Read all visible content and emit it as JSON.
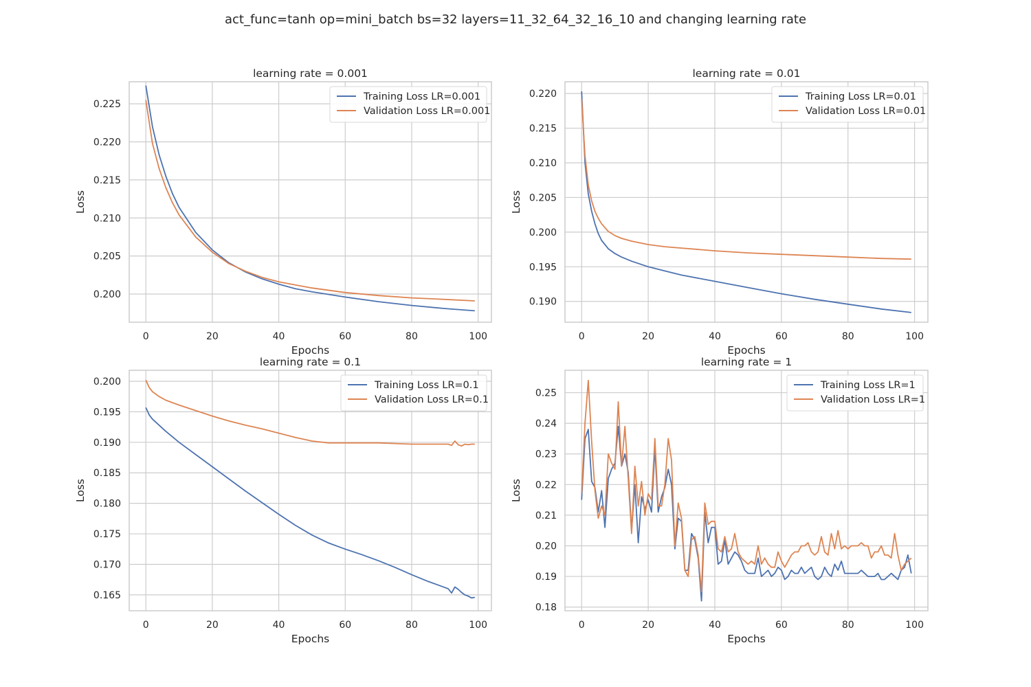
{
  "figure": {
    "suptitle": "act_func=tanh op=mini_batch bs=32 layers=11_32_64_32_16_10 and changing learning rate"
  },
  "colors": {
    "training": "#4c72b0",
    "validation": "#dd8452",
    "grid": "#cccccc",
    "spine": "#cccccc",
    "text": "#262626"
  },
  "chart_data": [
    {
      "type": "line",
      "title": "learning rate = 0.001",
      "xlabel": "Epochs",
      "ylabel": "Loss",
      "xlim": [
        -5,
        104
      ],
      "ylim": [
        0.1963,
        0.2279
      ],
      "xticks": [
        0,
        20,
        40,
        60,
        80,
        100
      ],
      "xtick_labels": [
        "0",
        "20",
        "40",
        "60",
        "80",
        "100"
      ],
      "yticks": [
        0.2,
        0.205,
        0.21,
        0.215,
        0.22,
        0.225
      ],
      "ytick_labels": [
        "0.200",
        "0.205",
        "0.210",
        "0.215",
        "0.220",
        "0.225"
      ],
      "grid": true,
      "legend": "top-right",
      "series": [
        {
          "name": "Training Loss LR=0.001",
          "color": "#4c72b0",
          "x": [
            0,
            2,
            4,
            6,
            8,
            10,
            15,
            20,
            25,
            30,
            35,
            40,
            45,
            50,
            60,
            70,
            80,
            90,
            99
          ],
          "y": [
            0.2274,
            0.222,
            0.2183,
            0.2155,
            0.2132,
            0.2114,
            0.2081,
            0.2058,
            0.2041,
            0.2029,
            0.202,
            0.2013,
            0.2007,
            0.2003,
            0.1996,
            0.199,
            0.1985,
            0.1981,
            0.1978
          ]
        },
        {
          "name": "Validation Loss LR=0.001",
          "color": "#dd8452",
          "x": [
            0,
            2,
            4,
            6,
            8,
            10,
            15,
            20,
            25,
            30,
            35,
            40,
            45,
            50,
            60,
            70,
            80,
            90,
            99
          ],
          "y": [
            0.2255,
            0.2198,
            0.2165,
            0.214,
            0.212,
            0.2104,
            0.2075,
            0.2055,
            0.204,
            0.203,
            0.2022,
            0.2016,
            0.2012,
            0.2008,
            0.2002,
            0.1998,
            0.1995,
            0.1993,
            0.1991
          ]
        }
      ]
    },
    {
      "type": "line",
      "title": "learning rate = 0.01",
      "xlabel": "Epochs",
      "ylabel": "Loss",
      "xlim": [
        -5,
        104
      ],
      "ylim": [
        0.187,
        0.2217
      ],
      "xticks": [
        0,
        20,
        40,
        60,
        80,
        100
      ],
      "xtick_labels": [
        "0",
        "20",
        "40",
        "60",
        "80",
        "100"
      ],
      "yticks": [
        0.19,
        0.195,
        0.2,
        0.205,
        0.21,
        0.215,
        0.22
      ],
      "ytick_labels": [
        "0.190",
        "0.195",
        "0.200",
        "0.205",
        "0.210",
        "0.215",
        "0.220"
      ],
      "grid": true,
      "legend": "top-right",
      "series": [
        {
          "name": "Training Loss LR=0.01",
          "color": "#4c72b0",
          "x": [
            0,
            1,
            2,
            3,
            4,
            5,
            6,
            8,
            10,
            12,
            15,
            20,
            25,
            30,
            40,
            50,
            60,
            70,
            80,
            90,
            99
          ],
          "y": [
            0.2203,
            0.21,
            0.2055,
            0.203,
            0.2012,
            0.1998,
            0.1988,
            0.1976,
            0.1969,
            0.1964,
            0.1958,
            0.195,
            0.1944,
            0.1938,
            0.1929,
            0.192,
            0.1911,
            0.1903,
            0.1896,
            0.1889,
            0.1884
          ]
        },
        {
          "name": "Validation Loss LR=0.01",
          "color": "#dd8452",
          "x": [
            0,
            1,
            2,
            3,
            4,
            5,
            6,
            8,
            10,
            12,
            15,
            20,
            25,
            30,
            40,
            50,
            60,
            70,
            80,
            90,
            99
          ],
          "y": [
            0.2192,
            0.211,
            0.2068,
            0.2045,
            0.203,
            0.202,
            0.2012,
            0.2001,
            0.1995,
            0.1991,
            0.1987,
            0.1982,
            0.1979,
            0.1977,
            0.1973,
            0.197,
            0.1968,
            0.1966,
            0.1964,
            0.1962,
            0.1961
          ]
        }
      ]
    },
    {
      "type": "line",
      "title": "learning rate = 0.1",
      "xlabel": "Epochs",
      "ylabel": "Loss",
      "xlim": [
        -5,
        104
      ],
      "ylim": [
        0.1624,
        0.2018
      ],
      "xticks": [
        0,
        20,
        40,
        60,
        80,
        100
      ],
      "xtick_labels": [
        "0",
        "20",
        "40",
        "60",
        "80",
        "100"
      ],
      "yticks": [
        0.165,
        0.17,
        0.175,
        0.18,
        0.185,
        0.19,
        0.195,
        0.2
      ],
      "ytick_labels": [
        "0.165",
        "0.170",
        "0.175",
        "0.180",
        "0.185",
        "0.190",
        "0.195",
        "0.200"
      ],
      "grid": true,
      "legend": "top-right",
      "series": [
        {
          "name": "Training Loss LR=0.1",
          "color": "#4c72b0",
          "x": [
            0,
            1,
            2,
            4,
            6,
            8,
            10,
            15,
            20,
            25,
            30,
            35,
            40,
            45,
            50,
            55,
            60,
            65,
            70,
            75,
            80,
            85,
            90,
            91,
            92,
            93,
            94,
            95,
            96,
            97,
            98,
            99
          ],
          "y": [
            0.1957,
            0.1945,
            0.1938,
            0.1928,
            0.1918,
            0.1909,
            0.19,
            0.188,
            0.186,
            0.184,
            0.182,
            0.1801,
            0.1782,
            0.1764,
            0.1748,
            0.1735,
            0.1725,
            0.1716,
            0.1706,
            0.1695,
            0.1683,
            0.1672,
            0.1662,
            0.166,
            0.1653,
            0.1663,
            0.1659,
            0.1654,
            0.165,
            0.1648,
            0.1645,
            0.1646
          ]
        },
        {
          "name": "Validation Loss LR=0.1",
          "color": "#dd8452",
          "x": [
            0,
            1,
            2,
            4,
            6,
            8,
            10,
            15,
            20,
            25,
            30,
            35,
            40,
            45,
            50,
            55,
            60,
            65,
            70,
            75,
            80,
            85,
            90,
            91,
            92,
            93,
            94,
            95,
            96,
            97,
            98,
            99
          ],
          "y": [
            0.2002,
            0.199,
            0.1983,
            0.1975,
            0.1969,
            0.1965,
            0.1961,
            0.1952,
            0.1943,
            0.1935,
            0.1928,
            0.1922,
            0.1915,
            0.1908,
            0.1902,
            0.1899,
            0.1899,
            0.1899,
            0.1899,
            0.1898,
            0.1897,
            0.1897,
            0.1897,
            0.1897,
            0.1895,
            0.1902,
            0.1896,
            0.1894,
            0.1897,
            0.1896,
            0.1897,
            0.1897
          ]
        }
      ]
    },
    {
      "type": "line",
      "title": "learning rate = 1",
      "xlabel": "Epochs",
      "ylabel": "Loss",
      "xlim": [
        -5,
        104
      ],
      "ylim": [
        0.1788,
        0.2573
      ],
      "xticks": [
        0,
        20,
        40,
        60,
        80,
        100
      ],
      "xtick_labels": [
        "0",
        "20",
        "40",
        "60",
        "80",
        "100"
      ],
      "yticks": [
        0.18,
        0.19,
        0.2,
        0.21,
        0.22,
        0.23,
        0.24,
        0.25
      ],
      "ytick_labels": [
        "0.18",
        "0.19",
        "0.20",
        "0.21",
        "0.22",
        "0.23",
        "0.24",
        "0.25"
      ],
      "grid": true,
      "legend": "top-right",
      "series": [
        {
          "name": "Training Loss LR=1",
          "color": "#4c72b0",
          "x": [
            0,
            1,
            2,
            3,
            4,
            5,
            6,
            7,
            8,
            9,
            10,
            11,
            12,
            13,
            14,
            15,
            16,
            17,
            18,
            19,
            20,
            21,
            22,
            23,
            24,
            25,
            26,
            27,
            28,
            29,
            30,
            31,
            32,
            33,
            34,
            35,
            36,
            37,
            38,
            39,
            40,
            41,
            42,
            43,
            44,
            45,
            46,
            47,
            48,
            49,
            50,
            51,
            52,
            53,
            54,
            55,
            56,
            57,
            58,
            59,
            60,
            61,
            62,
            63,
            64,
            65,
            66,
            67,
            68,
            69,
            70,
            71,
            72,
            73,
            74,
            75,
            76,
            77,
            78,
            79,
            80,
            81,
            82,
            83,
            84,
            85,
            86,
            87,
            88,
            89,
            90,
            91,
            92,
            93,
            94,
            95,
            96,
            97,
            98,
            99
          ],
          "y": [
            0.215,
            0.235,
            0.238,
            0.221,
            0.219,
            0.211,
            0.218,
            0.206,
            0.222,
            0.225,
            0.227,
            0.239,
            0.226,
            0.23,
            0.224,
            0.205,
            0.22,
            0.201,
            0.216,
            0.212,
            0.215,
            0.211,
            0.232,
            0.211,
            0.216,
            0.219,
            0.225,
            0.22,
            0.199,
            0.209,
            0.208,
            0.192,
            0.192,
            0.204,
            0.202,
            0.196,
            0.182,
            0.211,
            0.201,
            0.206,
            0.206,
            0.194,
            0.195,
            0.202,
            0.194,
            0.196,
            0.198,
            0.197,
            0.195,
            0.192,
            0.191,
            0.191,
            0.191,
            0.196,
            0.19,
            0.191,
            0.192,
            0.19,
            0.191,
            0.193,
            0.192,
            0.189,
            0.19,
            0.192,
            0.191,
            0.191,
            0.193,
            0.191,
            0.192,
            0.193,
            0.19,
            0.189,
            0.19,
            0.193,
            0.191,
            0.19,
            0.194,
            0.192,
            0.195,
            0.191,
            0.191,
            0.191,
            0.191,
            0.191,
            0.192,
            0.191,
            0.19,
            0.19,
            0.19,
            0.191,
            0.189,
            0.189,
            0.19,
            0.191,
            0.19,
            0.189,
            0.192,
            0.193,
            0.197,
            0.191
          ]
        },
        {
          "name": "Validation Loss LR=1",
          "color": "#dd8452",
          "x": [
            0,
            1,
            2,
            3,
            4,
            5,
            6,
            7,
            8,
            9,
            10,
            11,
            12,
            13,
            14,
            15,
            16,
            17,
            18,
            19,
            20,
            21,
            22,
            23,
            24,
            25,
            26,
            27,
            28,
            29,
            30,
            31,
            32,
            33,
            34,
            35,
            36,
            37,
            38,
            39,
            40,
            41,
            42,
            43,
            44,
            45,
            46,
            47,
            48,
            49,
            50,
            51,
            52,
            53,
            54,
            55,
            56,
            57,
            58,
            59,
            60,
            61,
            62,
            63,
            64,
            65,
            66,
            67,
            68,
            69,
            70,
            71,
            72,
            73,
            74,
            75,
            76,
            77,
            78,
            79,
            80,
            81,
            82,
            83,
            84,
            85,
            86,
            87,
            88,
            89,
            90,
            91,
            92,
            93,
            94,
            95,
            96,
            97,
            98,
            99
          ],
          "y": [
            0.217,
            0.24,
            0.254,
            0.234,
            0.218,
            0.209,
            0.213,
            0.21,
            0.23,
            0.227,
            0.225,
            0.247,
            0.226,
            0.239,
            0.222,
            0.204,
            0.226,
            0.213,
            0.221,
            0.21,
            0.217,
            0.215,
            0.235,
            0.213,
            0.213,
            0.22,
            0.235,
            0.228,
            0.2,
            0.214,
            0.209,
            0.192,
            0.19,
            0.202,
            0.203,
            0.197,
            0.185,
            0.214,
            0.207,
            0.208,
            0.208,
            0.199,
            0.198,
            0.203,
            0.198,
            0.199,
            0.204,
            0.198,
            0.196,
            0.195,
            0.194,
            0.195,
            0.194,
            0.2,
            0.194,
            0.196,
            0.194,
            0.193,
            0.193,
            0.198,
            0.195,
            0.193,
            0.195,
            0.197,
            0.198,
            0.198,
            0.2,
            0.2,
            0.201,
            0.198,
            0.197,
            0.198,
            0.203,
            0.198,
            0.197,
            0.204,
            0.199,
            0.205,
            0.199,
            0.2,
            0.199,
            0.2,
            0.2,
            0.2,
            0.201,
            0.2,
            0.2,
            0.196,
            0.198,
            0.198,
            0.2,
            0.197,
            0.197,
            0.196,
            0.204,
            0.197,
            0.192,
            0.194,
            0.195,
            0.196
          ]
        }
      ]
    }
  ]
}
